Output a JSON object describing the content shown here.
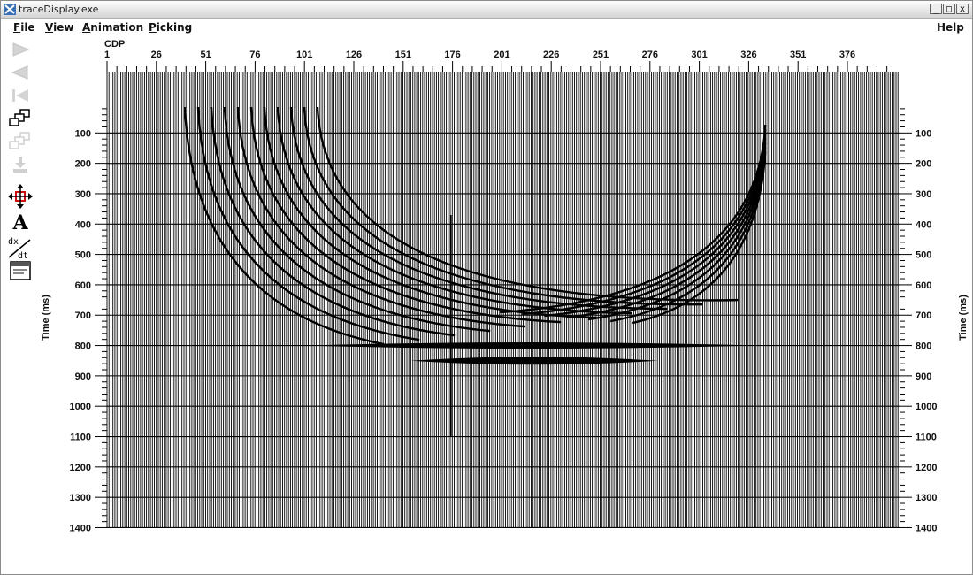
{
  "window": {
    "title": "traceDisplay.exe"
  },
  "window_buttons": {
    "minimize": "_",
    "restore": "□",
    "close": "x"
  },
  "menu": {
    "file": {
      "mnemonic": "F",
      "rest": "ile"
    },
    "view": {
      "mnemonic": "V",
      "rest": "iew"
    },
    "animation": {
      "mnemonic": "A",
      "rest": "nimation"
    },
    "picking": {
      "mnemonic": "P",
      "rest": "icking"
    },
    "help": "Help"
  },
  "toolbar": [
    {
      "icon": "play-forward-icon",
      "enabled": false
    },
    {
      "icon": "play-backward-icon",
      "enabled": false
    },
    {
      "icon": "skip-to-start-icon",
      "enabled": false
    },
    {
      "icon": "windows-stack-icon",
      "enabled": true
    },
    {
      "icon": "windows-stack-disabled-icon",
      "enabled": false
    },
    {
      "icon": "import-icon",
      "enabled": false
    },
    {
      "icon": "pan-move-icon",
      "enabled": true
    },
    {
      "icon": "text-font-icon",
      "glyph": "A",
      "enabled": true
    },
    {
      "icon": "derivative-dxdt-icon",
      "glyph_top": "dx",
      "glyph_bottom": "dt",
      "enabled": true
    },
    {
      "icon": "window-properties-icon",
      "enabled": true
    }
  ],
  "chart_data": {
    "type": "seismic-wiggle",
    "x_axis": {
      "title": "CDP",
      "range": [
        1,
        400
      ],
      "ticks": [
        1,
        26,
        51,
        76,
        101,
        126,
        151,
        176,
        201,
        226,
        251,
        276,
        301,
        326,
        351,
        376
      ]
    },
    "y_axis": {
      "title_left": "Time (ms)",
      "title_right": "Time (ms)",
      "range": [
        0,
        1400
      ],
      "ticks": [
        100,
        200,
        300,
        400,
        500,
        600,
        700,
        800,
        900,
        1000,
        1100,
        1200,
        1300,
        1400
      ],
      "inverted": true
    },
    "grid": true,
    "events": [
      {
        "kind": "flat-reflector",
        "time_ms": 800,
        "cdp_start": 101,
        "cdp_end": 330
      },
      {
        "kind": "flat-reflector",
        "time_ms": 850,
        "cdp_start": 155,
        "cdp_end": 280
      },
      {
        "kind": "diffraction-fan",
        "apex_time_ms": 790,
        "apex_cdp": 101,
        "count": 11
      },
      {
        "kind": "diffraction-fan",
        "apex_time_ms": 720,
        "apex_cdp": 330,
        "count": 7
      },
      {
        "kind": "spike",
        "cdp": 176,
        "time_start_ms": 370,
        "time_end_ms": 1100
      }
    ]
  }
}
